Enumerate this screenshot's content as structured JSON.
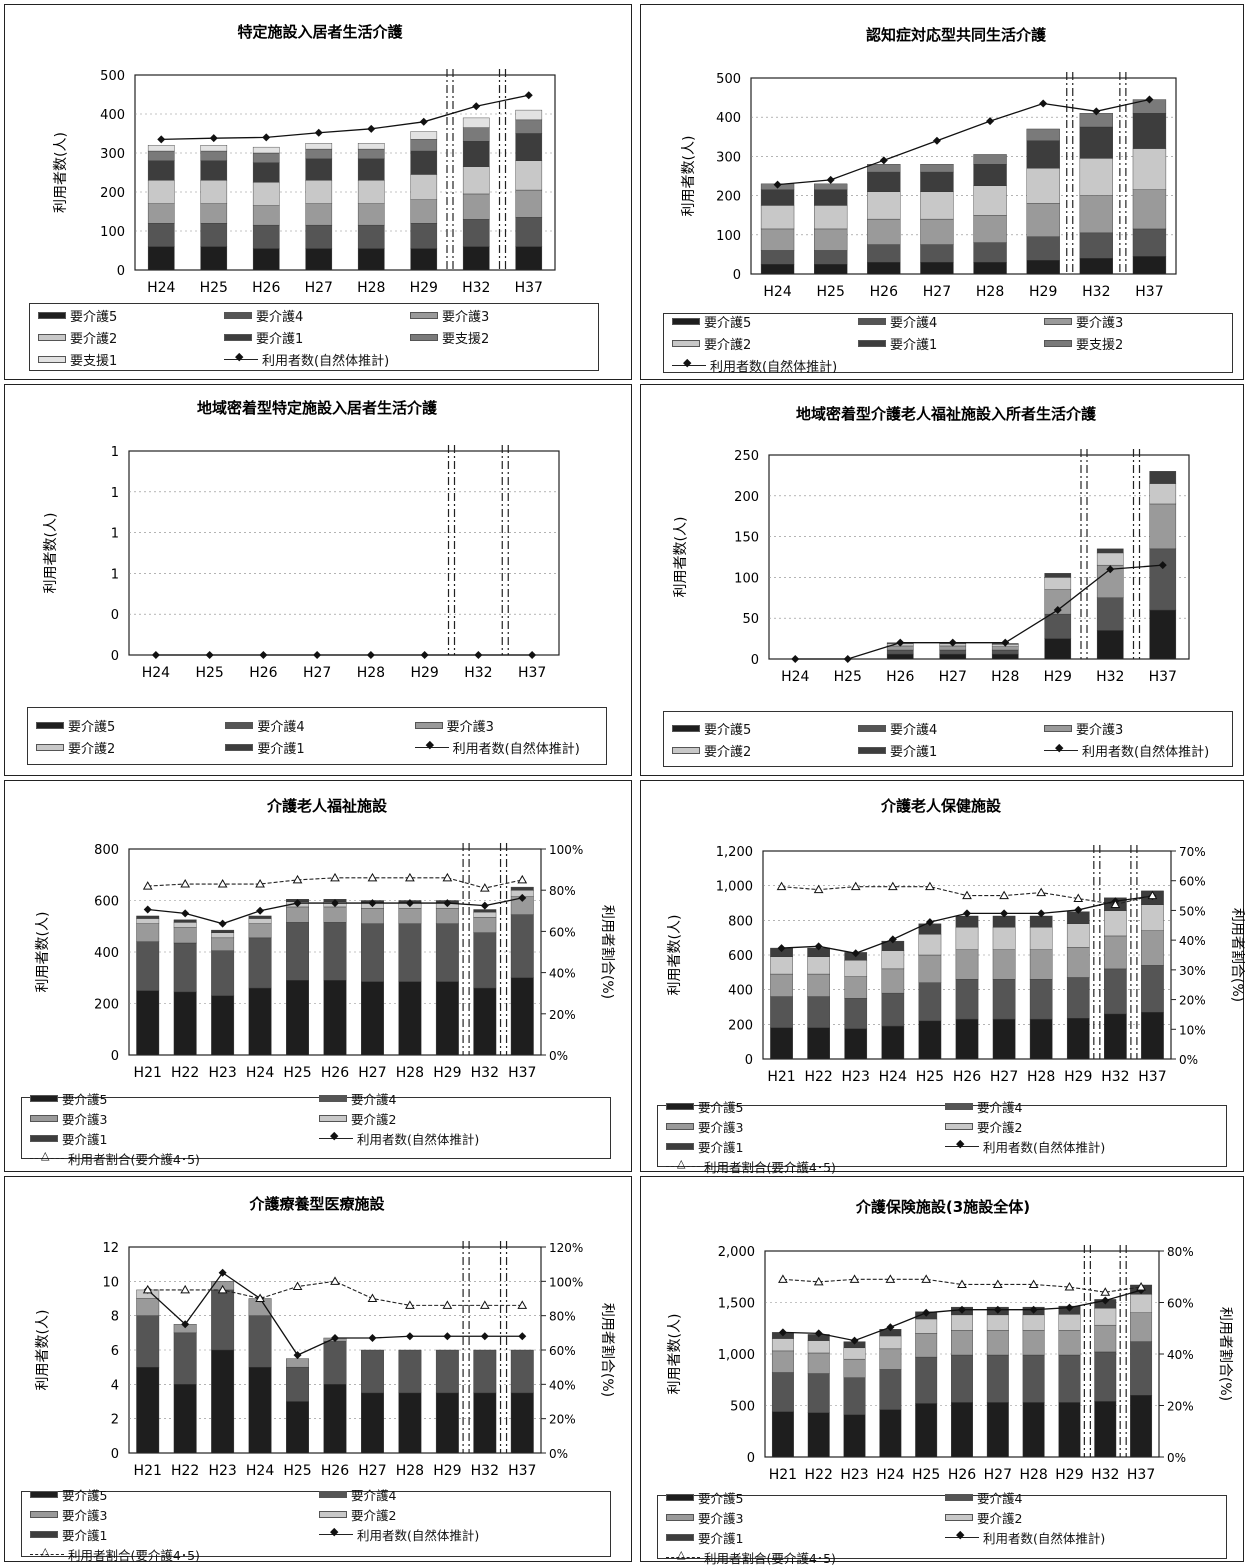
{
  "colors": {
    "要介護5": "#1e1e1e",
    "要介護4": "#555555",
    "要介護3": "#9a9a9a",
    "要介護2": "#c8c8c8",
    "要介護1": "#3d3d3d",
    "要支援2": "#7a7a7a",
    "要支援1": "#e2e2e2"
  },
  "labels": {
    "k5": "要介護5",
    "k4": "要介護4",
    "k3": "要介護3",
    "k2": "要介護2",
    "k1": "要介護1",
    "s2": "要支援2",
    "s1": "要支援1",
    "users": "利用者数(自然体推計)",
    "ratio": "利用者割合(要介護4･5)"
  },
  "chart_data": [
    {
      "type": "bar",
      "title": "特定施設入居者生活介護",
      "ylabel": "利用者数(人)",
      "categories": [
        "H24",
        "H25",
        "H26",
        "H27",
        "H28",
        "H29",
        "H32",
        "H37"
      ],
      "ylim": [
        0,
        500
      ],
      "yticks": [
        "0",
        "100",
        "200",
        "300",
        "400",
        "500"
      ],
      "stacked": true,
      "series": [
        {
          "name": "要介護5",
          "key": "要介護5",
          "values": [
            60,
            60,
            55,
            55,
            55,
            55,
            60,
            60
          ]
        },
        {
          "name": "要介護4",
          "key": "要介護4",
          "values": [
            60,
            60,
            60,
            60,
            60,
            65,
            70,
            75
          ]
        },
        {
          "name": "要介護3",
          "key": "要介護3",
          "values": [
            50,
            50,
            50,
            55,
            55,
            60,
            65,
            70
          ]
        },
        {
          "name": "要介護2",
          "key": "要介護2",
          "values": [
            60,
            60,
            60,
            60,
            60,
            65,
            70,
            75
          ]
        },
        {
          "name": "要介護1",
          "key": "要介護1",
          "values": [
            50,
            50,
            50,
            55,
            55,
            60,
            65,
            70
          ]
        },
        {
          "name": "要支援2",
          "key": "要支援2",
          "values": [
            25,
            25,
            25,
            25,
            25,
            30,
            35,
            35
          ]
        },
        {
          "name": "要支援1",
          "key": "要支援1",
          "values": [
            15,
            15,
            15,
            15,
            15,
            20,
            25,
            25
          ]
        }
      ],
      "line": {
        "name": "利用者数(自然体推計)",
        "values": [
          335,
          338,
          340,
          352,
          362,
          380,
          420,
          448
        ]
      },
      "legend": [
        "k5",
        "k4",
        "k3",
        "k2",
        "k1",
        "s2",
        "s1",
        "users"
      ]
    },
    {
      "type": "bar",
      "title": "認知症対応型共同生活介護",
      "ylabel": "利用者数(人)",
      "categories": [
        "H24",
        "H25",
        "H26",
        "H27",
        "H28",
        "H29",
        "H32",
        "H37"
      ],
      "ylim": [
        0,
        500
      ],
      "yticks": [
        "0",
        "100",
        "200",
        "300",
        "400",
        "500"
      ],
      "stacked": true,
      "series": [
        {
          "name": "要介護5",
          "key": "要介護5",
          "values": [
            25,
            25,
            30,
            30,
            30,
            35,
            40,
            45
          ]
        },
        {
          "name": "要介護4",
          "key": "要介護4",
          "values": [
            35,
            35,
            45,
            45,
            50,
            60,
            65,
            70
          ]
        },
        {
          "name": "要介護3",
          "key": "要介護3",
          "values": [
            55,
            55,
            65,
            65,
            70,
            85,
            95,
            100
          ]
        },
        {
          "name": "要介護2",
          "key": "要介護2",
          "values": [
            60,
            60,
            70,
            70,
            75,
            90,
            95,
            105
          ]
        },
        {
          "name": "要介護1",
          "key": "要介護1",
          "values": [
            40,
            40,
            50,
            50,
            55,
            70,
            80,
            90
          ]
        },
        {
          "name": "要支援2",
          "key": "要支援2",
          "values": [
            15,
            15,
            20,
            20,
            25,
            30,
            35,
            35
          ]
        }
      ],
      "line": {
        "name": "利用者数(自然体推計)",
        "values": [
          228,
          240,
          290,
          340,
          390,
          435,
          415,
          445
        ]
      },
      "legend": [
        "k5",
        "k4",
        "k3",
        "k2",
        "k1",
        "s2",
        "users"
      ]
    },
    {
      "type": "bar",
      "title": "地域密着型特定施設入居者生活介護",
      "ylabel": "利用者数(人)",
      "categories": [
        "H24",
        "H25",
        "H26",
        "H27",
        "H28",
        "H29",
        "H32",
        "H37"
      ],
      "ylim": [
        0,
        1
      ],
      "yticks": [
        "0",
        "0",
        "1",
        "1",
        "1",
        "1"
      ],
      "stacked": true,
      "series": [],
      "line": {
        "name": "利用者数(自然体推計)",
        "values": [
          0,
          0,
          0,
          0,
          0,
          0,
          0,
          0
        ]
      },
      "legend": [
        "k5",
        "k4",
        "k3",
        "k2",
        "k1",
        "users"
      ]
    },
    {
      "type": "bar",
      "title": "地域密着型介護老人福祉施設入所者生活介護",
      "ylabel": "利用者数(人)",
      "categories": [
        "H24",
        "H25",
        "H26",
        "H27",
        "H28",
        "H29",
        "H32",
        "H37"
      ],
      "ylim": [
        0,
        250
      ],
      "yticks": [
        "0",
        "50",
        "100",
        "150",
        "200",
        "250"
      ],
      "stacked": true,
      "series": [
        {
          "name": "要介護5",
          "key": "要介護5",
          "values": [
            0,
            0,
            6,
            6,
            6,
            25,
            35,
            60
          ]
        },
        {
          "name": "要介護4",
          "key": "要介護4",
          "values": [
            0,
            0,
            5,
            5,
            5,
            30,
            40,
            75
          ]
        },
        {
          "name": "要介護3",
          "key": "要介護3",
          "values": [
            0,
            0,
            5,
            5,
            4,
            30,
            40,
            55
          ]
        },
        {
          "name": "要介護2",
          "key": "要介護2",
          "values": [
            0,
            0,
            3,
            3,
            3,
            15,
            15,
            25
          ]
        },
        {
          "name": "要介護1",
          "key": "要介護1",
          "values": [
            0,
            0,
            1,
            1,
            1,
            5,
            5,
            15
          ]
        }
      ],
      "line": {
        "name": "利用者数(自然体推計)",
        "values": [
          0,
          0,
          20,
          20,
          20,
          60,
          110,
          115
        ]
      },
      "legend": [
        "k5",
        "k4",
        "k3",
        "k2",
        "k1",
        "users"
      ]
    },
    {
      "type": "bar",
      "title": "介護老人福祉施設",
      "ylabel": "利用者数(人)",
      "y2label": "利用者割合(%)",
      "categories": [
        "H21",
        "H22",
        "H23",
        "H24",
        "H25",
        "H26",
        "H27",
        "H28",
        "H29",
        "H32",
        "H37"
      ],
      "ylim": [
        0,
        800
      ],
      "yticks": [
        "0",
        "200",
        "400",
        "600",
        "800"
      ],
      "y2lim": [
        0,
        100
      ],
      "y2ticks": [
        "0%",
        "20%",
        "40%",
        "60%",
        "80%",
        "100%"
      ],
      "stacked": true,
      "series": [
        {
          "name": "要介護5",
          "key": "要介護5",
          "values": [
            250,
            245,
            230,
            260,
            290,
            290,
            285,
            285,
            285,
            260,
            300
          ]
        },
        {
          "name": "要介護4",
          "key": "要介護4",
          "values": [
            190,
            190,
            175,
            195,
            225,
            225,
            225,
            225,
            225,
            215,
            245
          ]
        },
        {
          "name": "要介護3",
          "key": "要介護3",
          "values": [
            70,
            60,
            50,
            55,
            60,
            60,
            60,
            60,
            60,
            60,
            70
          ]
        },
        {
          "name": "要介護2",
          "key": "要介護2",
          "values": [
            20,
            20,
            20,
            20,
            20,
            20,
            20,
            20,
            20,
            20,
            25
          ]
        },
        {
          "name": "要介護1",
          "key": "要介護1",
          "values": [
            10,
            10,
            10,
            10,
            10,
            10,
            10,
            10,
            10,
            10,
            12
          ]
        }
      ],
      "line": {
        "name": "利用者数(自然体推計)",
        "values": [
          565,
          550,
          510,
          560,
          590,
          590,
          590,
          590,
          590,
          580,
          610
        ]
      },
      "line2": {
        "name": "利用者割合(要介護4･5)",
        "values": [
          82,
          83,
          83,
          83,
          85,
          86,
          86,
          86,
          86,
          81,
          85
        ]
      },
      "legend": [
        "k5",
        "k4",
        "k3",
        "k2",
        "k1",
        "users",
        "ratio"
      ],
      "legend_cols": 2
    },
    {
      "type": "bar",
      "title": "介護老人保健施設",
      "ylabel": "利用者数(人)",
      "y2label": "利用者割合(%)",
      "categories": [
        "H21",
        "H22",
        "H23",
        "H24",
        "H25",
        "H26",
        "H27",
        "H28",
        "H29",
        "H32",
        "H37"
      ],
      "ylim": [
        0,
        1200
      ],
      "yticks": [
        "0",
        "200",
        "400",
        "600",
        "800",
        "1,000",
        "1,200"
      ],
      "y2lim": [
        0,
        70
      ],
      "y2ticks": [
        "0%",
        "10%",
        "20%",
        "30%",
        "40%",
        "50%",
        "60%",
        "70%"
      ],
      "stacked": true,
      "series": [
        {
          "name": "要介護5",
          "key": "要介護5",
          "values": [
            180,
            180,
            175,
            190,
            220,
            230,
            230,
            230,
            235,
            260,
            270
          ]
        },
        {
          "name": "要介護4",
          "key": "要介護4",
          "values": [
            180,
            180,
            175,
            190,
            220,
            230,
            230,
            230,
            235,
            260,
            270
          ]
        },
        {
          "name": "要介護3",
          "key": "要介護3",
          "values": [
            130,
            130,
            125,
            140,
            160,
            170,
            170,
            170,
            175,
            190,
            200
          ]
        },
        {
          "name": "要介護2",
          "key": "要介護2",
          "values": [
            100,
            100,
            95,
            105,
            120,
            130,
            130,
            130,
            135,
            145,
            150
          ]
        },
        {
          "name": "要介護1",
          "key": "要介護1",
          "values": [
            50,
            50,
            45,
            55,
            60,
            65,
            65,
            65,
            70,
            75,
            80
          ]
        }
      ],
      "line": {
        "name": "利用者数(自然体推計)",
        "values": [
          640,
          650,
          610,
          690,
          790,
          840,
          840,
          840,
          860,
          910,
          940
        ]
      },
      "line2": {
        "name": "利用者割合(要介護4･5)",
        "values": [
          58,
          57,
          58,
          58,
          58,
          55,
          55,
          56,
          54,
          52,
          55
        ]
      },
      "legend": [
        "k5",
        "k4",
        "k3",
        "k2",
        "k1",
        "users",
        "ratio"
      ],
      "legend_cols": 2
    },
    {
      "type": "bar",
      "title": "介護療養型医療施設",
      "ylabel": "利用者数(人)",
      "y2label": "利用者割合(%)",
      "categories": [
        "H21",
        "H22",
        "H23",
        "H24",
        "H25",
        "H26",
        "H27",
        "H28",
        "H29",
        "H32",
        "H37"
      ],
      "ylim": [
        0,
        12
      ],
      "yticks": [
        "0",
        "2",
        "4",
        "6",
        "8",
        "10",
        "12"
      ],
      "y2lim": [
        0,
        120
      ],
      "y2ticks": [
        "0%",
        "20%",
        "40%",
        "60%",
        "80%",
        "100%",
        "120%"
      ],
      "stacked": true,
      "series": [
        {
          "name": "要介護5",
          "key": "要介護5",
          "values": [
            5,
            4,
            6,
            5,
            3,
            4,
            3.5,
            3.5,
            3.5,
            3.5,
            3.5
          ]
        },
        {
          "name": "要介護4",
          "key": "要介護4",
          "values": [
            3,
            3,
            3.5,
            3,
            2,
            2.5,
            2.5,
            2.5,
            2.5,
            2.5,
            2.5
          ]
        },
        {
          "name": "要介護3",
          "key": "要介護3",
          "values": [
            1,
            0.5,
            0.5,
            1,
            0.5,
            0.2,
            0,
            0,
            0,
            0,
            0
          ]
        },
        {
          "name": "要介護2",
          "key": "要介護2",
          "values": [
            0.5,
            0,
            0,
            0,
            0,
            0,
            0,
            0,
            0,
            0,
            0
          ]
        }
      ],
      "line": {
        "name": "利用者数(自然体推計)",
        "values": [
          9.5,
          7.5,
          10.5,
          9,
          5.7,
          6.7,
          6.7,
          6.8,
          6.8,
          6.8,
          6.8
        ]
      },
      "line2": {
        "name": "利用者割合(要介護4･5)",
        "values": [
          95,
          95,
          95,
          90,
          97,
          100,
          90,
          86,
          86,
          86,
          86
        ]
      },
      "legend": [
        "k5",
        "k4",
        "k3",
        "k2",
        "k1",
        "users",
        "ratio"
      ],
      "legend_cols": 2
    },
    {
      "type": "bar",
      "title": "介護保険施設(3施設全体)",
      "ylabel": "利用者数(人)",
      "y2label": "利用者割合(%)",
      "categories": [
        "H21",
        "H22",
        "H23",
        "H24",
        "H25",
        "H26",
        "H27",
        "H28",
        "H29",
        "H32",
        "H37"
      ],
      "ylim": [
        0,
        2000
      ],
      "yticks": [
        "0",
        "500",
        "1,000",
        "1,500",
        "2,000"
      ],
      "y2lim": [
        0,
        80
      ],
      "y2ticks": [
        "0%",
        "20%",
        "40%",
        "60%",
        "80%"
      ],
      "stacked": true,
      "series": [
        {
          "name": "要介護5",
          "key": "要介護5",
          "values": [
            440,
            430,
            410,
            460,
            520,
            530,
            530,
            530,
            530,
            540,
            600
          ]
        },
        {
          "name": "要介護4",
          "key": "要介護4",
          "values": [
            380,
            380,
            360,
            390,
            450,
            460,
            460,
            460,
            460,
            480,
            520
          ]
        },
        {
          "name": "要介護3",
          "key": "要介護3",
          "values": [
            210,
            200,
            180,
            200,
            230,
            240,
            240,
            240,
            240,
            260,
            280
          ]
        },
        {
          "name": "要介護2",
          "key": "要介護2",
          "values": [
            120,
            120,
            110,
            125,
            140,
            150,
            150,
            150,
            155,
            165,
            180
          ]
        },
        {
          "name": "要介護1",
          "key": "要介護1",
          "values": [
            60,
            60,
            60,
            65,
            70,
            75,
            75,
            75,
            80,
            85,
            90
          ]
        }
      ],
      "line": {
        "name": "利用者数(自然体推計)",
        "values": [
          1210,
          1200,
          1130,
          1260,
          1400,
          1430,
          1430,
          1430,
          1450,
          1520,
          1620
        ]
      },
      "line2": {
        "name": "利用者割合(要介護4･5)",
        "values": [
          69,
          68,
          69,
          69,
          69,
          67,
          67,
          67,
          66,
          64,
          66
        ]
      },
      "legend": [
        "k5",
        "k4",
        "k3",
        "k2",
        "k1",
        "users",
        "ratio"
      ],
      "legend_cols": 2
    }
  ]
}
